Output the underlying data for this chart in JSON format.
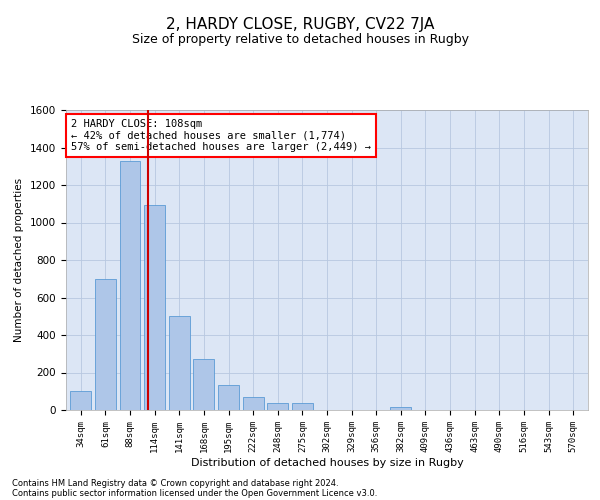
{
  "title": "2, HARDY CLOSE, RUGBY, CV22 7JA",
  "subtitle": "Size of property relative to detached houses in Rugby",
  "xlabel": "Distribution of detached houses by size in Rugby",
  "ylabel": "Number of detached properties",
  "footer_line1": "Contains HM Land Registry data © Crown copyright and database right 2024.",
  "footer_line2": "Contains public sector information licensed under the Open Government Licence v3.0.",
  "annotation_line1": "2 HARDY CLOSE: 108sqm",
  "annotation_line2": "← 42% of detached houses are smaller (1,774)",
  "annotation_line3": "57% of semi-detached houses are larger (2,449) →",
  "bar_color": "#aec6e8",
  "bar_edge_color": "#5b9bd5",
  "vline_color": "#cc0000",
  "vline_x": 2.72,
  "categories": [
    "34sqm",
    "61sqm",
    "88sqm",
    "114sqm",
    "141sqm",
    "168sqm",
    "195sqm",
    "222sqm",
    "248sqm",
    "275sqm",
    "302sqm",
    "329sqm",
    "356sqm",
    "382sqm",
    "409sqm",
    "436sqm",
    "463sqm",
    "490sqm",
    "516sqm",
    "543sqm",
    "570sqm"
  ],
  "values": [
    100,
    700,
    1330,
    1095,
    500,
    270,
    135,
    70,
    35,
    35,
    0,
    0,
    0,
    15,
    0,
    0,
    0,
    0,
    0,
    0,
    0
  ],
  "ylim": [
    0,
    1600
  ],
  "yticks": [
    0,
    200,
    400,
    600,
    800,
    1000,
    1200,
    1400,
    1600
  ],
  "background_color": "#ffffff",
  "plot_bg_color": "#dce6f5",
  "grid_color": "#b8c8e0",
  "title_fontsize": 11,
  "subtitle_fontsize": 9,
  "annotation_fontsize": 7.5,
  "footer_fontsize": 6
}
